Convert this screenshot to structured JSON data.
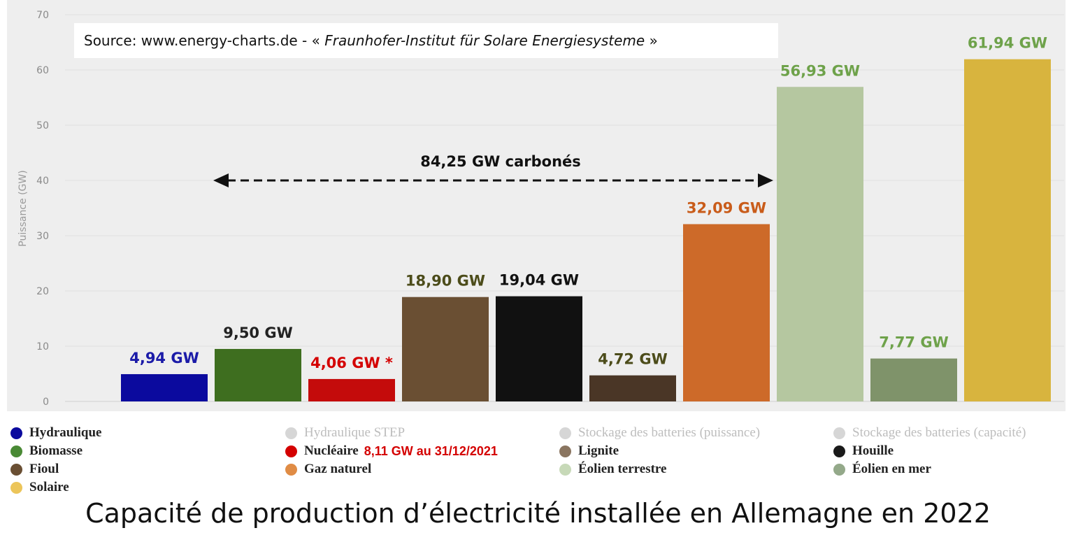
{
  "source": {
    "prefix": "Source: www.energy-charts.de - « ",
    "italic": "Fraunhofer-Institut für Solare Energiesysteme",
    "suffix": " »"
  },
  "caption": "Capacité de production d’électricité installée en Allemagne en 2022",
  "chart_data": {
    "type": "bar",
    "title": "",
    "xlabel": "",
    "ylabel": "Puissance (GW)",
    "ylim": [
      0,
      70
    ],
    "yticks": [
      0,
      10,
      20,
      30,
      40,
      50,
      60,
      70
    ],
    "grid": true,
    "legend_position": "bottom",
    "categories": [
      "Hydraulique",
      "Biomasse",
      "Nucléaire",
      "Fioul",
      "Houille",
      "Lignite",
      "Gaz naturel",
      "Éolien terrestre",
      "Éolien en mer",
      "Solaire"
    ],
    "values": [
      4.94,
      9.5,
      4.06,
      18.9,
      19.04,
      4.72,
      32.09,
      56.93,
      7.77,
      61.94
    ],
    "bar_colors": [
      "#0b0a9e",
      "#3e6e1f",
      "#c40b0b",
      "#6a4f33",
      "#111111",
      "#4a3626",
      "#cd6a29",
      "#b5c7a0",
      "#7f936a",
      "#d8b43e"
    ],
    "value_labels": [
      "4,94 GW",
      "9,50 GW",
      "4,06 GW *",
      "18,90 GW",
      "19,04 GW",
      "4,72 GW",
      "32,09 GW",
      "56,93 GW",
      "7,77 GW",
      "61,94 GW"
    ],
    "label_colors": [
      "#1b1ba8",
      "#222222",
      "#d40000",
      "#4c4c1a",
      "#111111",
      "#4c4c1a",
      "#c95c1a",
      "#6ea24a",
      "#6ea24a",
      "#6ea24a"
    ],
    "annotation": {
      "text": "84,25 GW carbonés",
      "y": 40
    },
    "legend": [
      {
        "label": "Hydraulique",
        "color": "#0b0a9e",
        "muted": false
      },
      {
        "label": "Hydraulique STEP",
        "color": "#d6d6d6",
        "muted": true
      },
      {
        "label": "Stockage des batteries (puissance)",
        "color": "#d6d6d6",
        "muted": true
      },
      {
        "label": "Stockage des batteries (capacité)",
        "color": "#d6d6d6",
        "muted": true
      },
      {
        "label": "Biomasse",
        "color": "#4a8a35",
        "muted": false
      },
      {
        "label": "Nucléaire",
        "color": "#d40000",
        "muted": false,
        "note": "8,11 GW au 31/12/2021"
      },
      {
        "label": "Lignite",
        "color": "#8a7560",
        "muted": false
      },
      {
        "label": "Houille",
        "color": "#1a1a1a",
        "muted": false
      },
      {
        "label": "Fioul",
        "color": "#6a4f33",
        "muted": false
      },
      {
        "label": "Gaz naturel",
        "color": "#e08c45",
        "muted": false
      },
      {
        "label": "Éolien terrestre",
        "color": "#c7d9b8",
        "muted": false
      },
      {
        "label": "Éolien en mer",
        "color": "#94a98a",
        "muted": false
      },
      {
        "label": "Solaire",
        "color": "#ecc55a",
        "muted": false
      }
    ]
  }
}
